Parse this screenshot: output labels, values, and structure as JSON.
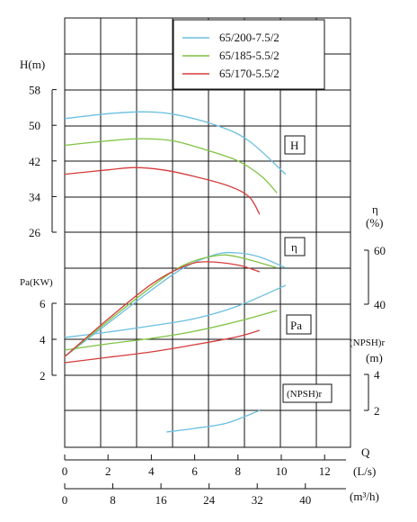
{
  "chart_data": {
    "type": "line",
    "legend": {
      "placement": "top-right",
      "entries": [
        {
          "key": "s200",
          "label": "65/200-7.5/2",
          "color": "#6bbfe0"
        },
        {
          "key": "s185",
          "label": "65/185-5.5/2",
          "color": "#7fc241"
        },
        {
          "key": "s170",
          "label": "65/170-5.5/2",
          "color": "#d63b3b"
        }
      ]
    },
    "box_labels": {
      "H": "H",
      "eta": "η",
      "Pa": "Pa",
      "npsh": "(NPSH)r"
    },
    "x_axis": {
      "q_label": "Q",
      "ls_unit": "(L/s)",
      "ls_ticks": [
        "0",
        "2",
        "4",
        "6",
        "8",
        "10",
        "12"
      ],
      "m3h_unit": "(m³/h)",
      "m3h_ticks": [
        "0",
        "8",
        "16",
        "24",
        "32",
        "40"
      ]
    },
    "head_axis": {
      "label": "H(m)",
      "ticks": [
        "58",
        "50",
        "42",
        "34",
        "26"
      ],
      "range": [
        26,
        58
      ]
    },
    "eta_axis": {
      "label": "η",
      "unit": "(%)",
      "ticks": [
        "60",
        "40"
      ],
      "range": [
        40,
        60
      ]
    },
    "power_axis": {
      "label": "Pa(KW)",
      "ticks": [
        "6",
        "4",
        "2"
      ],
      "range": [
        2,
        6
      ]
    },
    "npsh_axis": {
      "label": "(NPSH)r",
      "unit": "(m)",
      "ticks": [
        "4",
        "2"
      ],
      "range": [
        2,
        4
      ]
    },
    "grid": true,
    "series": {
      "s200": {
        "H": [
          [
            0,
            51.5
          ],
          [
            2,
            52.6
          ],
          [
            3.5,
            53
          ],
          [
            5,
            52.5
          ],
          [
            7,
            50
          ],
          [
            8.5,
            46.5
          ],
          [
            10.2,
            39
          ]
        ],
        "eta": [
          [
            0,
            20.6
          ],
          [
            2,
            32.9
          ],
          [
            4,
            45.2
          ],
          [
            5.5,
            53.5
          ],
          [
            7,
            58.5
          ],
          [
            8,
            59
          ],
          [
            9,
            57.5
          ],
          [
            10.2,
            53.5
          ]
        ],
        "Pa": [
          [
            0,
            4.1
          ],
          [
            2,
            4.4
          ],
          [
            4,
            4.75
          ],
          [
            6,
            5.15
          ],
          [
            8,
            5.85
          ],
          [
            10.2,
            7.0
          ]
        ],
        "npsh": [
          [
            4.7,
            0.8
          ],
          [
            6,
            1.0
          ],
          [
            7.5,
            1.3
          ],
          [
            9,
            2.0
          ]
        ]
      },
      "s185": {
        "H": [
          [
            0,
            45.5
          ],
          [
            2,
            46.5
          ],
          [
            3.5,
            47
          ],
          [
            5,
            46.5
          ],
          [
            6.5,
            44.5
          ],
          [
            8,
            42
          ],
          [
            9.1,
            38.5
          ],
          [
            9.8,
            34.8
          ]
        ],
        "eta": [
          [
            0,
            20.6
          ],
          [
            2,
            33.7
          ],
          [
            4,
            46.4
          ],
          [
            5.5,
            54.5
          ],
          [
            7,
            58
          ],
          [
            8,
            57.5
          ],
          [
            9.8,
            53.5
          ]
        ],
        "Pa": [
          [
            0,
            3.4
          ],
          [
            2,
            3.75
          ],
          [
            4,
            4.05
          ],
          [
            6,
            4.45
          ],
          [
            8,
            5.0
          ],
          [
            9.8,
            5.6
          ]
        ],
        "npsh": []
      },
      "s170": {
        "H": [
          [
            0,
            39
          ],
          [
            2,
            40
          ],
          [
            3.2,
            40.5
          ],
          [
            4.5,
            40
          ],
          [
            6,
            38.5
          ],
          [
            7.5,
            36.5
          ],
          [
            8.5,
            34
          ],
          [
            9,
            30
          ]
        ],
        "eta": [
          [
            0,
            20.6
          ],
          [
            2,
            34.5
          ],
          [
            4,
            47.4
          ],
          [
            5.5,
            54
          ],
          [
            6.5,
            55.7
          ],
          [
            8,
            54.5
          ],
          [
            9,
            52
          ]
        ],
        "Pa": [
          [
            0,
            2.7
          ],
          [
            2,
            3.0
          ],
          [
            4,
            3.3
          ],
          [
            6,
            3.7
          ],
          [
            8,
            4.15
          ],
          [
            9,
            4.5
          ]
        ],
        "npsh": []
      }
    }
  }
}
